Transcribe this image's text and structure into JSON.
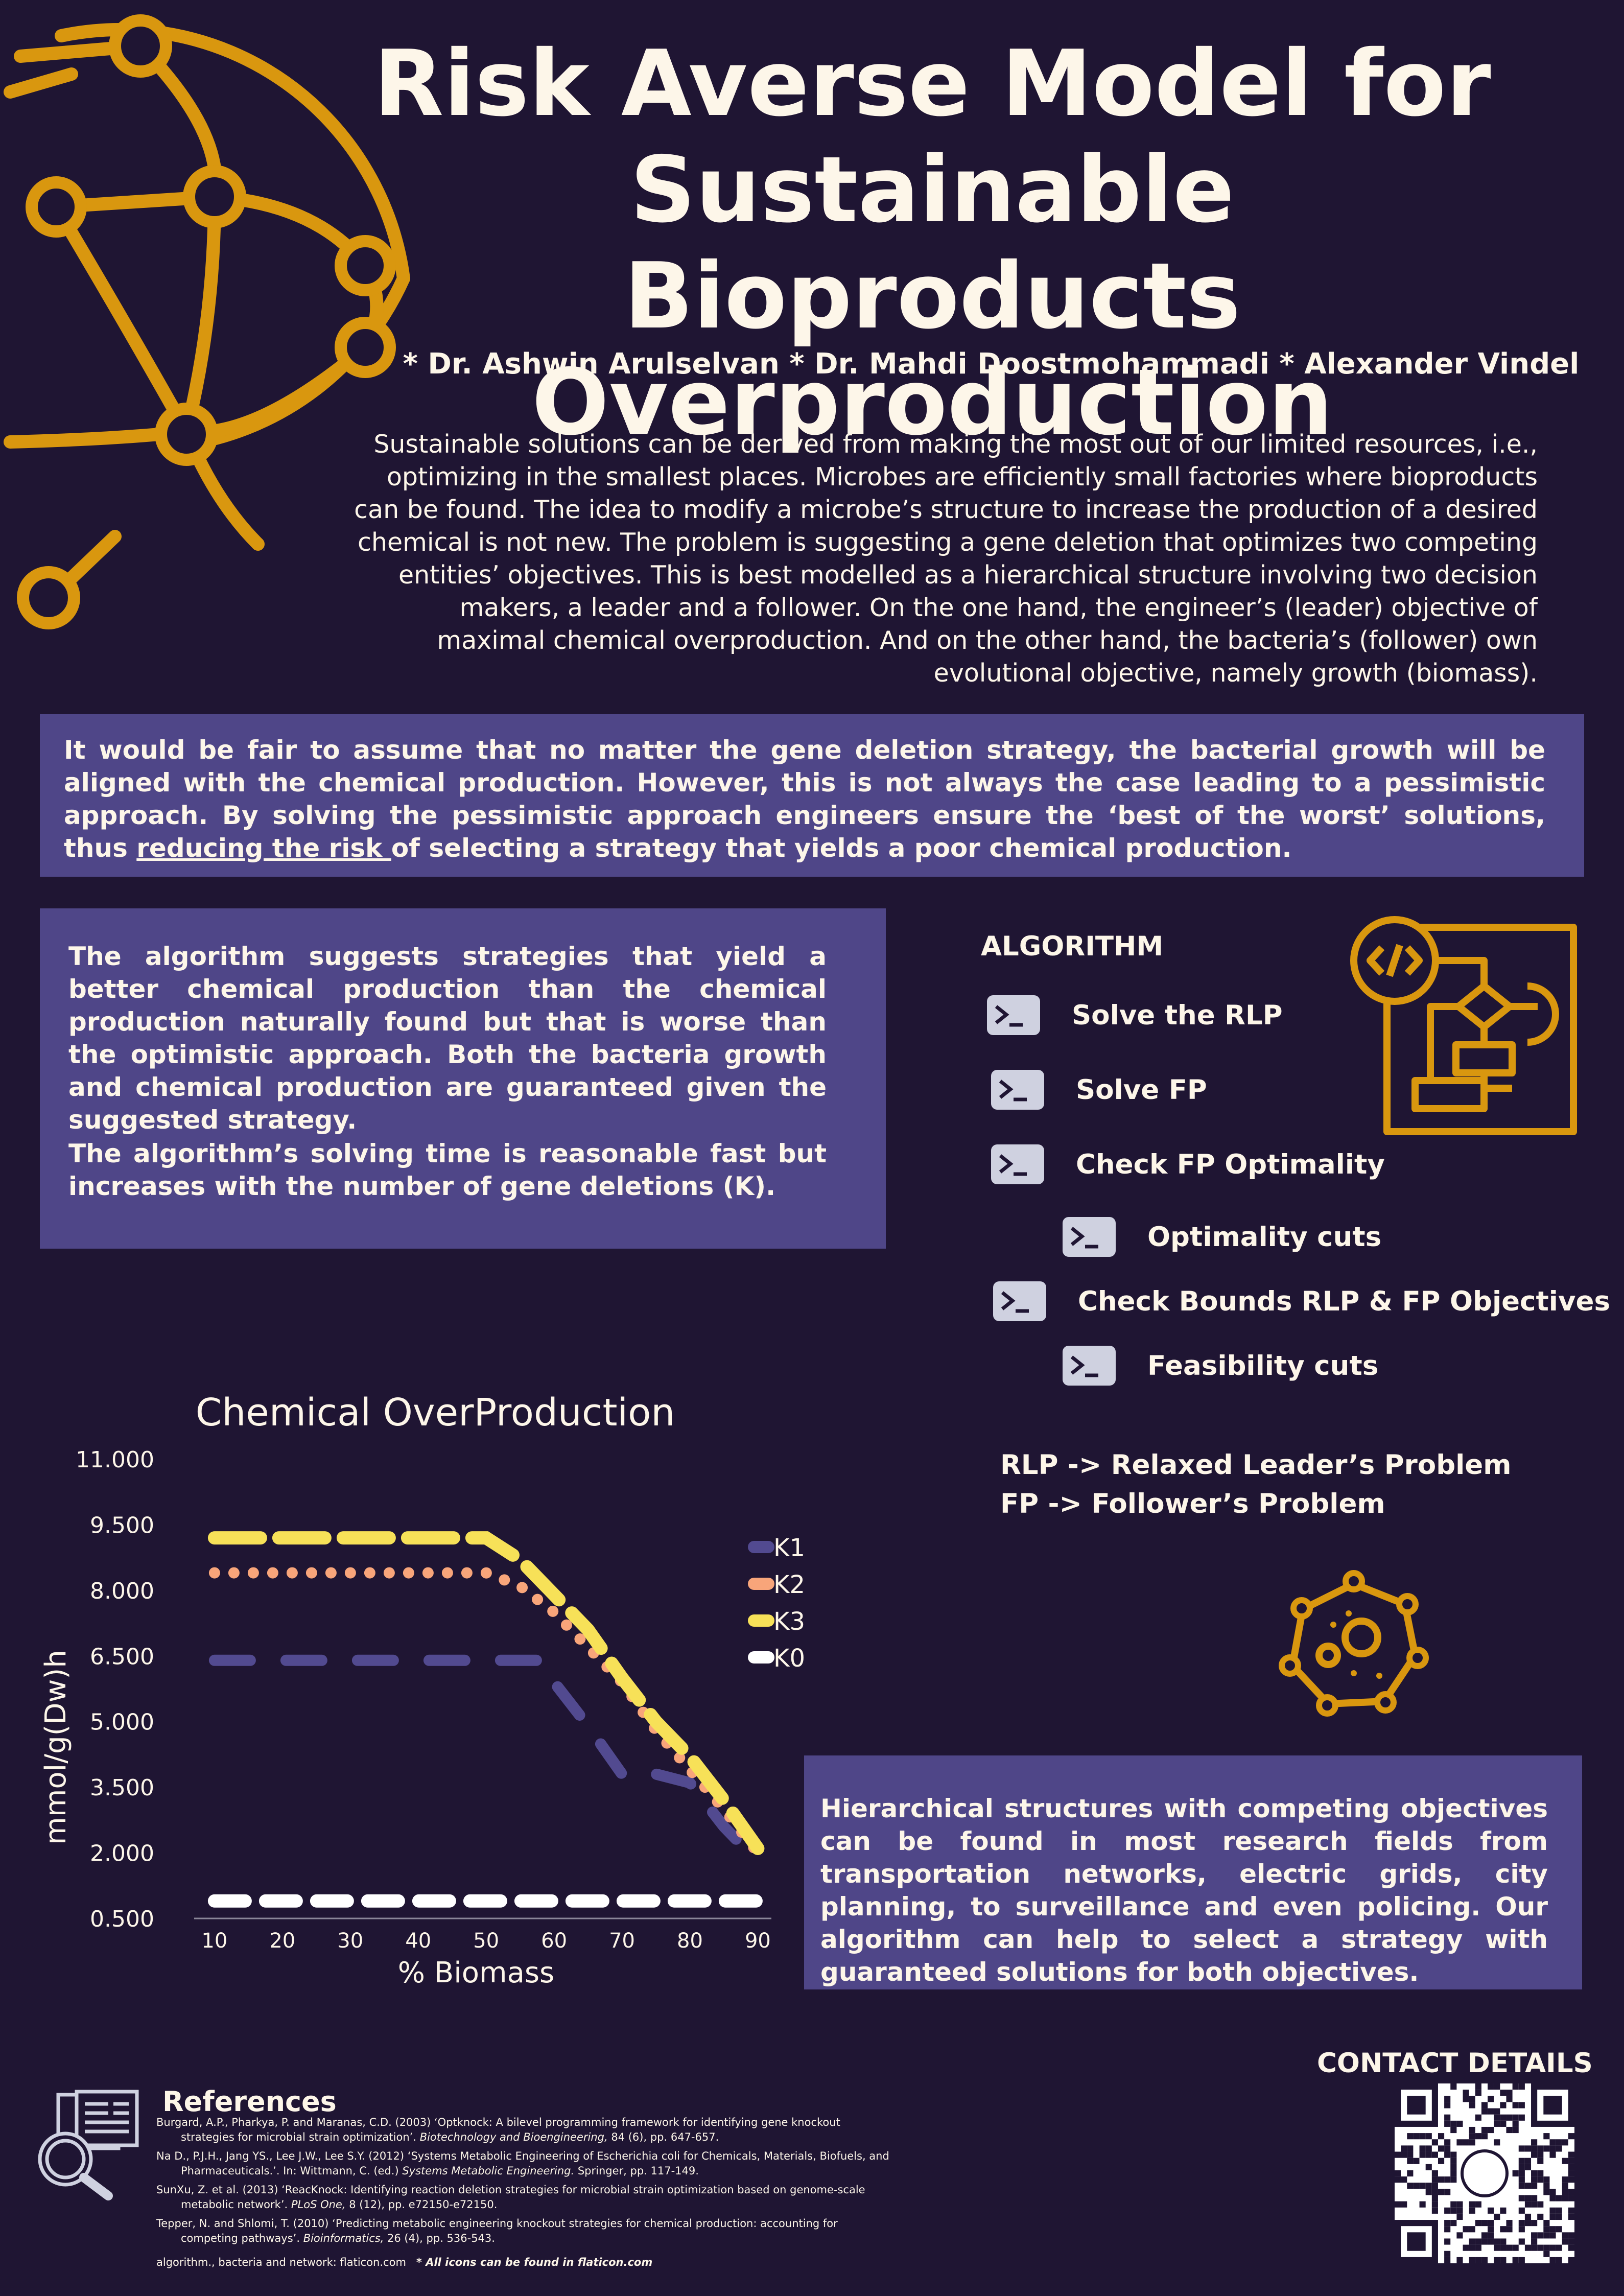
{
  "title_lines": [
    "Risk Averse Model for",
    "Sustainable Bioproducts",
    "Overproduction"
  ],
  "authors": "* Dr. Ashwin Arulselvan  * Dr. Mahdi Doostmohammadi  * Alexander Vindel",
  "intro": "Sustainable solutions can be derived from making the most out of our limited resources, i.e., optimizing in the smallest places. Microbes are efficiently  small factories where bioproducts can be found. The idea to modify a microbe’s structure to increase the production of a desired chemical is not new. The problem is suggesting a gene deletion that optimizes two competing entities’ objectives. This is best modelled as a hierarchical structure involving two decision makers, a leader and a follower. On the one hand, the engineer’s (leader) objective of maximal chemical overproduction. And on the other hand, the bacteria’s (follower) own evolutional objective, namely growth (biomass).",
  "risk": {
    "before": "It would be fair to assume that no matter the gene deletion strategy, the bacterial growth will be aligned with the chemical production. However, this is not always the case leading to a pessimistic approach. By solving the pessimistic approach engineers ensure the ‘best of the worst’ solutions, thus ",
    "underlined": "reducing the risk ",
    "after": "of selecting a strategy that yields a poor chemical production."
  },
  "algorithm_summary": {
    "p1": "The algorithm suggests strategies that yield a better chemical production than the chemical production naturally found but that is worse than the optimistic approach. Both the bacteria growth and chemical production are guaranteed given the suggested strategy.",
    "p2": "The algorithm’s solving time is reasonable fast but increases with the number of gene deletions (K)."
  },
  "algorithm": {
    "heading": "ALGORITHM",
    "steps": [
      {
        "label": "Solve the RLP",
        "indent": false
      },
      {
        "label": "Solve FP",
        "indent": false
      },
      {
        "label": "Check FP Optimality",
        "indent": false
      },
      {
        "label": "Optimality cuts",
        "indent": true
      },
      {
        "label": "Check Bounds RLP & FP Objectives",
        "indent": false
      },
      {
        "label": "Feasibility cuts",
        "indent": true
      }
    ],
    "definitions": [
      "RLP ->  Relaxed Leader’s Problem",
      "FP   ->  Follower’s Problem"
    ]
  },
  "hierarchical": "Hierarchical structures with competing objectives can be found in most research fields from transportation networks, electric grids, city planning, to surveillance and even policing. Our algorithm can help to select a strategy with guaranteed solutions for both objectives.",
  "contact": "CONTACT DETAILS",
  "references": {
    "heading": "References",
    "items": [
      {
        "text": "Burgard, A.P., Pharkya, P. and Maranas, C.D. (2003) ‘Optknock: A bilevel programming framework for identifying gene knockout strategies for microbial strain optimization’.",
        "journal": "Biotechnology and Bioengineering,",
        "tail": " 84 (6), pp. 647-657."
      },
      {
        "text": "Na D., P.J.H., Jang YS., Lee J.W., Lee S.Y. (2012) ‘Systems Metabolic Engineering of Escherichia coli for Chemicals, Materials, Biofuels, and Pharmaceuticals.’. In: Wittmann, C. (ed.)",
        "journal": "Systems Metabolic Engineering.",
        "tail": "  Springer, pp. 117-149."
      },
      {
        "text": "SunXu, Z. et al. (2013) ‘ReacKnock: Identifying reaction deletion strategies for microbial strain optimization based on genome-scale metabolic network’.",
        "journal": "PLoS One,",
        "tail": " 8 (12), pp. e72150-e72150."
      },
      {
        "text": "Tepper, N. and Shlomi, T. (2010) ‘Predicting metabolic engineering knockout strategies for chemical production: accounting for competing pathways’.",
        "journal": "Bioinformatics,",
        "tail": " 26 (4), pp. 536-543."
      }
    ],
    "footer": "algorithm., bacteria and network: flaticon.com",
    "footer_note": "* All icons can be found in flaticon.com"
  },
  "colors": {
    "background": "#1f1533",
    "box": "#4f4688",
    "accent": "#d9970f",
    "text": "#fdf6e9"
  },
  "icons": [
    "network-globe-icon",
    "terminal-icon",
    "flowchart-code-icon",
    "bacteria-icon",
    "research-document-icon",
    "qr-code"
  ],
  "chart_data": {
    "type": "line",
    "title": "Chemical OverProduction",
    "xlabel": "% Biomass",
    "ylabel": "mmol/g(Dw)h",
    "x_ticks": [
      10,
      20,
      30,
      40,
      50,
      60,
      70,
      80,
      90
    ],
    "y_ticks": [
      "0.500",
      "2.000",
      "3.500",
      "5.000",
      "6.500",
      "8.000",
      "9.500",
      "11.000"
    ],
    "y_tick_values": [
      0.5,
      2,
      3.5,
      5,
      6.5,
      8,
      9.5,
      11
    ],
    "xlim": [
      7,
      92
    ],
    "ylim": [
      0.5,
      11
    ],
    "legend_position": "right",
    "series": [
      {
        "name": "K1",
        "color": "#524a90",
        "x": [
          10,
          20,
          30,
          40,
          50,
          58,
          60,
          65,
          70,
          75,
          80,
          85,
          90
        ],
        "y": [
          6.4,
          6.4,
          6.4,
          6.4,
          6.4,
          6.4,
          5.9,
          4.9,
          3.8,
          3.8,
          3.6,
          2.6,
          1.8
        ]
      },
      {
        "name": "K2",
        "color": "#f8a57a",
        "x": [
          10,
          20,
          30,
          40,
          50,
          55,
          60,
          65,
          70,
          75,
          80,
          85,
          90
        ],
        "y": [
          8.4,
          8.4,
          8.4,
          8.4,
          8.4,
          8.1,
          7.5,
          6.7,
          5.9,
          4.8,
          3.9,
          3.0,
          2.0
        ]
      },
      {
        "name": "K3",
        "color": "#f7e158",
        "x": [
          10,
          20,
          30,
          40,
          50,
          55,
          60,
          65,
          70,
          75,
          80,
          85,
          90
        ],
        "y": [
          9.2,
          9.2,
          9.2,
          9.2,
          9.2,
          8.7,
          7.9,
          7.1,
          6.0,
          5.0,
          4.2,
          3.2,
          2.1
        ]
      },
      {
        "name": "K0",
        "color": "#ffffff",
        "x": [
          10,
          20,
          30,
          40,
          50,
          60,
          70,
          80,
          90
        ],
        "y": [
          0.9,
          0.9,
          0.9,
          0.9,
          0.9,
          0.9,
          0.9,
          0.9,
          0.9
        ]
      }
    ]
  }
}
